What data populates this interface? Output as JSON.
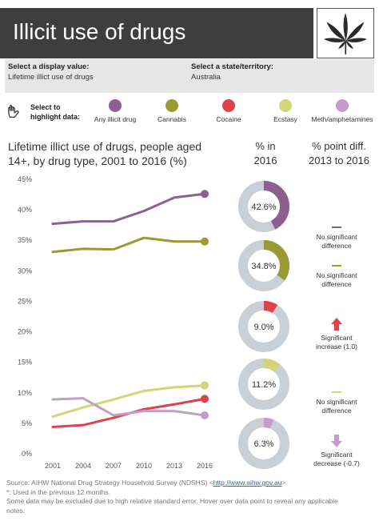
{
  "header": {
    "title": "Illicit use of drugs",
    "logo": "cannabis-leaf-icon"
  },
  "filters": {
    "display_label": "Select a display value:",
    "display_value": "Lifetime illict use of drugs",
    "state_label": "Select a state/territory:",
    "state_value": "Australia"
  },
  "legend": {
    "title_line1": "Select to",
    "title_line2": "highlight data:",
    "icon": "hand-pointer-icon",
    "items": [
      {
        "label": "Any illicit drug",
        "color": "#8c5f8f"
      },
      {
        "label": "Cannabis",
        "color": "#9a9a34"
      },
      {
        "label": "Cocaine",
        "color": "#e0424c"
      },
      {
        "label": "Ecstasy",
        "color": "#d4d47a"
      },
      {
        "label": "Meth/amphetamines",
        "color": "#c19ec6"
      }
    ]
  },
  "columns": {
    "pct_line1": "% in",
    "pct_line2": "2016",
    "diff_line1": "% point diff.",
    "diff_line2": "2013 to 2016"
  },
  "chart_data": {
    "type": "line",
    "title_line1": "Lifetime illict use of drugs, people aged",
    "title_line2": "14+, by drug type, 2001 to 2016 (%)",
    "x": [
      "2001",
      "2004",
      "2007",
      "2010",
      "2013",
      "2016"
    ],
    "yticks": [
      "0%",
      "5%",
      "10%",
      "15%",
      "20%",
      "25%",
      "30%",
      "35%",
      "40%",
      "45%"
    ],
    "ylim": [
      0,
      45
    ],
    "series": [
      {
        "name": "Any illicit drug",
        "color": "#8c5f8f",
        "values": [
          37.7,
          38.1,
          38.1,
          39.8,
          42.0,
          42.6
        ]
      },
      {
        "name": "Cannabis",
        "color": "#9a9a34",
        "values": [
          33.1,
          33.6,
          33.5,
          35.4,
          34.8,
          34.8
        ]
      },
      {
        "name": "Cocaine",
        "color": "#e0424c",
        "values": [
          4.4,
          4.7,
          5.9,
          7.3,
          8.1,
          9.0
        ]
      },
      {
        "name": "Ecstasy",
        "color": "#d4d47a",
        "values": [
          6.1,
          7.6,
          8.9,
          10.3,
          10.9,
          11.2
        ]
      },
      {
        "name": "Meth/amphetamines",
        "color": "#c19ec6",
        "values": [
          8.9,
          9.1,
          6.3,
          7.0,
          7.0,
          6.3
        ]
      }
    ]
  },
  "donuts": [
    {
      "label": "42.6%",
      "value": 42.6,
      "color": "#8c5f8f"
    },
    {
      "label": "34.8%",
      "value": 34.8,
      "color": "#9a9a34"
    },
    {
      "label": "9.0%",
      "value": 9.0,
      "color": "#e0424c"
    },
    {
      "label": "11.2%",
      "value": 11.2,
      "color": "#d4d47a"
    },
    {
      "label": "6.3%",
      "value": 6.3,
      "color": "#c19ec6"
    }
  ],
  "diffs": [
    {
      "icon": "dash-icon",
      "color": "#8c5f8f",
      "line1": "No significant",
      "line2": "difference"
    },
    {
      "icon": "dash-icon",
      "color": "#9a9a34",
      "line1": "No significant",
      "line2": "difference"
    },
    {
      "icon": "arrow-up-icon",
      "color": "#e0424c",
      "line1": "Significant",
      "line2": "increase (1.0)"
    },
    {
      "icon": "dash-icon",
      "color": "#d4d47a",
      "line1": "No significant",
      "line2": "difference"
    },
    {
      "icon": "arrow-down-icon",
      "color": "#c19ec6",
      "line1": "Significant",
      "line2": "decrease (-0.7)"
    }
  ],
  "footer": {
    "source_prefix": "Source: AIHW National Drug Strategy Household Survey (NDSHS) <",
    "source_link": "http://www.aihw.gov.au",
    "source_suffix": ">",
    "note1": "*: Used in the previous 12 months.",
    "note2": "Some data may be excluded due to high relative standard error. Hover over data point to reveal any applicable",
    "note3": "notes."
  }
}
